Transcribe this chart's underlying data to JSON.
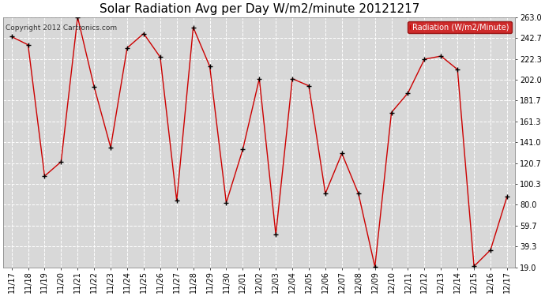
{
  "title": "Solar Radiation Avg per Day W/m2/minute 20121217",
  "copyright": "Copyright 2012 Cartronics.com",
  "legend_label": "Radiation (W/m2/Minute)",
  "dates": [
    "11/17",
    "11/18",
    "11/19",
    "11/20",
    "11/21",
    "11/22",
    "11/23",
    "11/24",
    "11/25",
    "11/26",
    "11/27",
    "11/28",
    "11/29",
    "11/30",
    "12/01",
    "12/02",
    "12/03",
    "12/04",
    "12/05",
    "12/06",
    "12/07",
    "12/08",
    "12/09",
    "12/10",
    "12/11",
    "12/12",
    "12/13",
    "12/14",
    "12/15",
    "12/16",
    "12/17"
  ],
  "values": [
    244.0,
    236.0,
    108.0,
    122.0,
    263.0,
    195.0,
    136.0,
    233.0,
    247.0,
    224.0,
    84.0,
    253.0,
    215.0,
    82.0,
    134.0,
    203.0,
    51.0,
    203.0,
    196.0,
    91.0,
    130.0,
    91.0,
    19.5,
    170.0,
    189.0,
    222.0,
    225.0,
    212.0,
    20.0,
    36.0,
    88.0
  ],
  "ylim": [
    19.0,
    263.0
  ],
  "ytick_values": [
    19.0,
    39.3,
    59.7,
    80.0,
    100.3,
    120.7,
    141.0,
    161.3,
    181.7,
    202.0,
    222.3,
    242.7,
    263.0
  ],
  "ytick_labels": [
    "19.0",
    "39.3",
    "59.7",
    "80.0",
    "100.3",
    "120.7",
    "141.0",
    "161.3",
    "181.7",
    "202.0",
    "222.3",
    "242.7",
    "263.0"
  ],
  "line_color": "#cc0000",
  "marker_color": "#000000",
  "bg_color": "#ffffff",
  "plot_bg_color": "#d8d8d8",
  "grid_color": "#ffffff",
  "title_fontsize": 11,
  "tick_fontsize": 7,
  "copyright_fontsize": 6.5,
  "legend_bg": "#cc0000",
  "legend_text_color": "#ffffff",
  "legend_fontsize": 7
}
